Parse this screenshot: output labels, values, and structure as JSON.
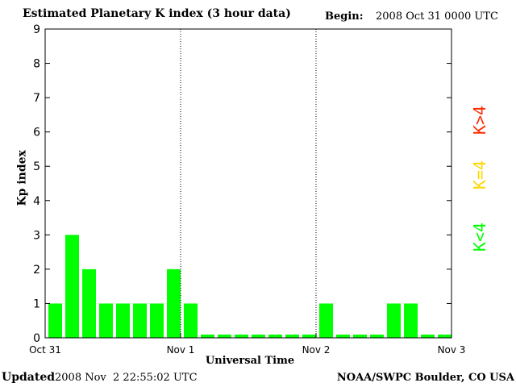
{
  "header": {
    "title": "Estimated Planetary K index (3 hour data)",
    "begin_label": "Begin:",
    "begin_value": "2008 Oct 31 0000 UTC"
  },
  "footer": {
    "updated_label": "Updated",
    "updated_value": "2008 Nov  2 22:55:02 UTC",
    "source": "NOAA/SWPC Boulder, CO USA"
  },
  "legend": {
    "items": [
      {
        "label": "K<4",
        "color": "#00ff00"
      },
      {
        "label": "K=4",
        "color": "#ffd700"
      },
      {
        "label": "K>4",
        "color": "#ff2a00"
      }
    ]
  },
  "chart_data": {
    "type": "bar",
    "title": "Estimated Planetary K index (3 hour data)",
    "xlabel": "Universal Time",
    "ylabel": "Kp index",
    "ylim": [
      0,
      9
    ],
    "yticks": [
      0,
      1,
      2,
      3,
      4,
      5,
      6,
      7,
      8,
      9
    ],
    "xtick_labels": [
      "Oct 31",
      "Nov 1",
      "Nov 2",
      "Nov 3"
    ],
    "interval_hours": 3,
    "start": "2008 Oct 31 0000 UTC",
    "grid": "dotted vertical lines at day boundaries",
    "bar_color": "#00ff00",
    "values": [
      1,
      3,
      2,
      1,
      1,
      1,
      1,
      2,
      1,
      0,
      0,
      0,
      0,
      0,
      0,
      0,
      1,
      0,
      0,
      0,
      1,
      1,
      0,
      0
    ]
  }
}
